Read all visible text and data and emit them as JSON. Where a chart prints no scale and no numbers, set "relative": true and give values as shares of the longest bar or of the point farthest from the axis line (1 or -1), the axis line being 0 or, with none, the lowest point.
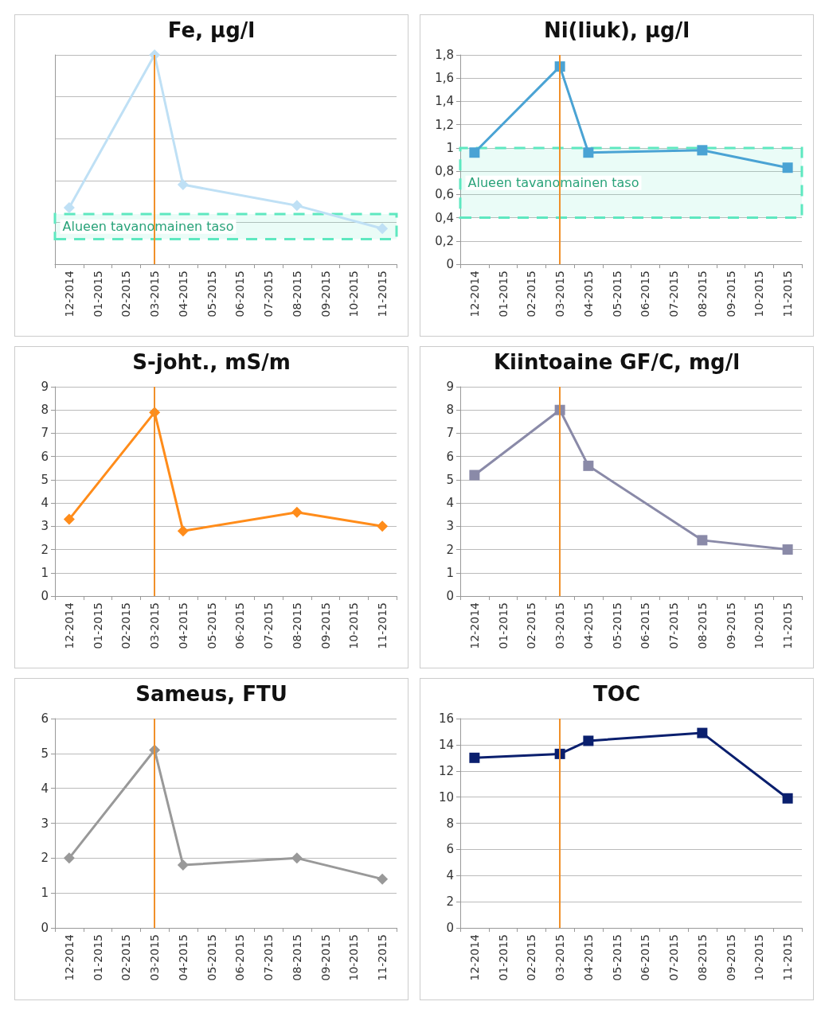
{
  "chart_data": [
    {
      "type": "line",
      "title": "Fe, µg/l",
      "relative": true,
      "categories": [
        "12-2014",
        "01-2015",
        "02-2015",
        "03-2015",
        "04-2015",
        "05-2015",
        "06-2015",
        "07-2015",
        "08-2015",
        "09-2015",
        "10-2015",
        "11-2015"
      ],
      "series": [
        {
          "color": "#bfe0f5",
          "values": [
            0.27,
            null,
            null,
            1,
            0.38,
            null,
            null,
            null,
            0.28,
            null,
            null,
            0.17
          ]
        }
      ],
      "marker": "diamond",
      "grid": "y",
      "ref_lines": [
        {
          "axis": "x",
          "value": "03-2015",
          "color": "#f0902a"
        }
      ],
      "bands": [
        {
          "axis": "y",
          "from": 0.12,
          "to": 0.24,
          "label": "Alueen tavanomainen taso",
          "color": "#5ee8c0"
        }
      ]
    },
    {
      "type": "line",
      "title": "Ni(liuk), µg/l",
      "categories": [
        "12-2014",
        "01-2015",
        "02-2015",
        "03-2015",
        "04-2015",
        "05-2015",
        "06-2015",
        "07-2015",
        "08-2015",
        "09-2015",
        "10-2015",
        "11-2015"
      ],
      "series": [
        {
          "color": "#4aa3d4",
          "values": [
            0.96,
            null,
            null,
            1.7,
            0.96,
            null,
            null,
            null,
            0.98,
            null,
            null,
            0.83
          ]
        }
      ],
      "ylim": [
        0,
        1.8
      ],
      "yticks": [
        0,
        {
          "value": 0.2,
          "label": "0,2"
        },
        {
          "value": 0.4,
          "label": "0,4"
        },
        {
          "value": 0.6,
          "label": "0,6"
        },
        {
          "value": 0.8,
          "label": "0,8"
        },
        1,
        {
          "value": 1.2,
          "label": "1,2"
        },
        {
          "value": 1.4,
          "label": "1,4"
        },
        {
          "value": 1.6,
          "label": "1,6"
        },
        {
          "value": 1.8,
          "label": "1,8"
        }
      ],
      "marker": "square",
      "grid": "y",
      "ref_lines": [
        {
          "axis": "x",
          "value": "03-2015",
          "color": "#f0902a"
        }
      ],
      "bands": [
        {
          "axis": "y",
          "from": 0.4,
          "to": 1,
          "label": "Alueen tavanomainen taso",
          "color": "#5ee8c0"
        }
      ]
    },
    {
      "type": "line",
      "title": "S-joht., mS/m",
      "categories": [
        "12-2014",
        "01-2015",
        "02-2015",
        "03-2015",
        "04-2015",
        "05-2015",
        "06-2015",
        "07-2015",
        "08-2015",
        "09-2015",
        "10-2015",
        "11-2015"
      ],
      "series": [
        {
          "color": "#ff8c1a",
          "values": [
            3.3,
            null,
            null,
            7.9,
            2.8,
            null,
            null,
            null,
            3.6,
            null,
            null,
            3.0
          ]
        }
      ],
      "ylim": [
        0,
        9
      ],
      "yticks": [
        0,
        1,
        2,
        3,
        4,
        5,
        6,
        7,
        8,
        9
      ],
      "marker": "diamond",
      "grid": "y",
      "ref_lines": [
        {
          "axis": "x",
          "value": "03-2015",
          "color": "#f0902a"
        }
      ]
    },
    {
      "type": "line",
      "title": "Kiintoaine GF/C, mg/l",
      "categories": [
        "12-2014",
        "01-2015",
        "02-2015",
        "03-2015",
        "04-2015",
        "05-2015",
        "06-2015",
        "07-2015",
        "08-2015",
        "09-2015",
        "10-2015",
        "11-2015"
      ],
      "series": [
        {
          "color": "#8a8aa8",
          "values": [
            5.2,
            null,
            null,
            8.0,
            5.6,
            null,
            null,
            null,
            2.4,
            null,
            null,
            2.0
          ]
        }
      ],
      "ylim": [
        0,
        9
      ],
      "yticks": [
        0,
        1,
        2,
        3,
        4,
        5,
        6,
        7,
        8,
        9
      ],
      "marker": "square",
      "grid": "y",
      "ref_lines": [
        {
          "axis": "x",
          "value": "03-2015",
          "color": "#f0902a"
        }
      ]
    },
    {
      "type": "line",
      "title": "Sameus, FTU",
      "categories": [
        "12-2014",
        "01-2015",
        "02-2015",
        "03-2015",
        "04-2015",
        "05-2015",
        "06-2015",
        "07-2015",
        "08-2015",
        "09-2015",
        "10-2015",
        "11-2015"
      ],
      "series": [
        {
          "color": "#999999",
          "values": [
            2.0,
            null,
            null,
            5.1,
            1.8,
            null,
            null,
            null,
            2.0,
            null,
            null,
            1.4
          ]
        }
      ],
      "ylim": [
        0,
        6
      ],
      "yticks": [
        0,
        1,
        2,
        3,
        4,
        5,
        6
      ],
      "marker": "diamond",
      "grid": "y",
      "ref_lines": [
        {
          "axis": "x",
          "value": "03-2015",
          "color": "#f0902a"
        }
      ]
    },
    {
      "type": "line",
      "title": "TOC",
      "categories": [
        "12-2014",
        "01-2015",
        "02-2015",
        "03-2015",
        "04-2015",
        "05-2015",
        "06-2015",
        "07-2015",
        "08-2015",
        "09-2015",
        "10-2015",
        "11-2015"
      ],
      "series": [
        {
          "color": "#0a1f6e",
          "values": [
            13.0,
            null,
            null,
            13.3,
            14.3,
            null,
            null,
            null,
            14.9,
            null,
            null,
            9.9
          ]
        }
      ],
      "ylim": [
        0,
        16
      ],
      "yticks": [
        0,
        2,
        4,
        6,
        8,
        10,
        12,
        14,
        16
      ],
      "marker": "square",
      "grid": "y",
      "ref_lines": [
        {
          "axis": "x",
          "value": "03-2015",
          "color": "#f0902a"
        }
      ]
    }
  ]
}
